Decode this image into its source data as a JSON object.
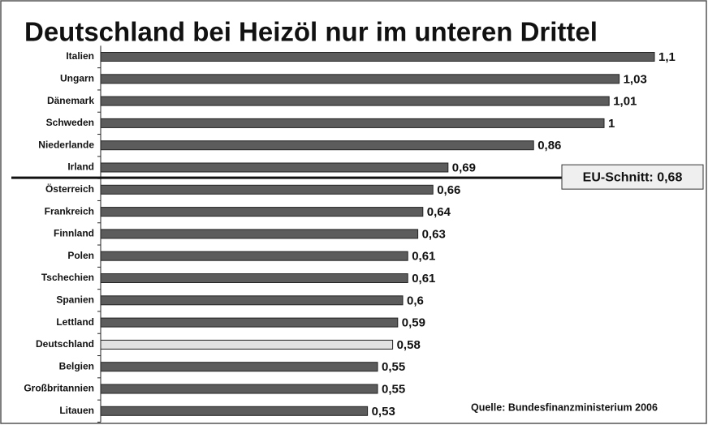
{
  "chart_data": {
    "type": "bar",
    "orientation": "horizontal",
    "title": "Deutschland bei Heizöl nur im unteren Drittel",
    "categories": [
      "Italien",
      "Ungarn",
      "Dänemark",
      "Schweden",
      "Niederlande",
      "Irland",
      "Österreich",
      "Frankreich",
      "Finnland",
      "Polen",
      "Tschechien",
      "Spanien",
      "Lettland",
      "Deutschland",
      "Belgien",
      "Großbritannien",
      "Litauen"
    ],
    "values": [
      1.1,
      1.03,
      1.01,
      1,
      0.86,
      0.69,
      0.66,
      0.64,
      0.63,
      0.61,
      0.61,
      0.6,
      0.59,
      0.58,
      0.55,
      0.55,
      0.53
    ],
    "value_labels": [
      "1,1",
      "1,03",
      "1,01",
      "1",
      "0,86",
      "0,69",
      "0,66",
      "0,64",
      "0,63",
      "0,61",
      "0,61",
      "0,6",
      "0,59",
      "0,58",
      "0,55",
      "0,55",
      "0,53"
    ],
    "colors": [
      "#5c5c5c",
      "#5c5c5c",
      "#5c5c5c",
      "#5c5c5c",
      "#5c5c5c",
      "#5c5c5c",
      "#5c5c5c",
      "#5c5c5c",
      "#5c5c5c",
      "#5c5c5c",
      "#5c5c5c",
      "#5c5c5c",
      "#5c5c5c",
      "#e2e2e2",
      "#5c5c5c",
      "#5c5c5c",
      "#5c5c5c"
    ],
    "xlim": [
      0,
      1.1
    ],
    "eu_average": {
      "value": 0.68,
      "label": "EU-Schnitt: 0,68"
    },
    "source": "Quelle: Bundesfinanzministerium 2006"
  }
}
